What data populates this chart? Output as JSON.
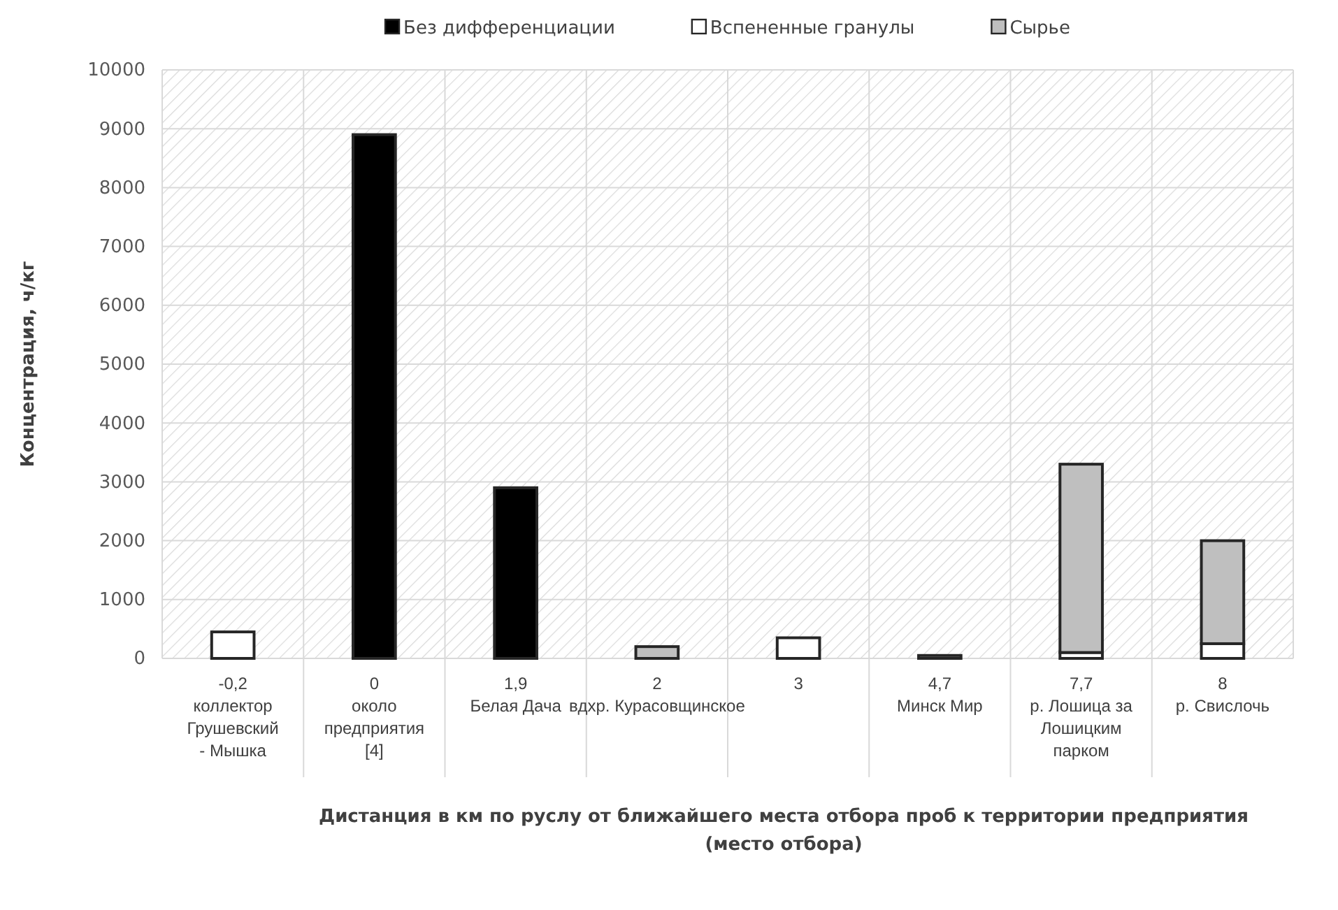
{
  "chart_data": {
    "type": "bar",
    "stacked": true,
    "xlabel": "Дистанция в км по руслу от ближайшего места отбора проб к территории предприятия\n(место отбора)",
    "ylabel": "Концентрация, ч/кг",
    "categories": [
      "-0,2\nколлектор\nГрушевский\n- Мышка",
      "0\nоколо\nпредприятия\n[4]",
      "1,9\nБелая Дача",
      "2\nвдхр. Курасовщинское",
      "3",
      "4,7\nМинск Мир",
      "7,7\nр. Лошица за\nЛошицким\nпарком",
      "8\nр. Свислочь"
    ],
    "series": [
      {
        "name": "Без дифференциации",
        "color": "#000000",
        "values": [
          null,
          8900,
          2900,
          null,
          null,
          null,
          null,
          null
        ]
      },
      {
        "name": "Вспененные гранулы",
        "color": "#ffffff",
        "values": [
          450,
          null,
          null,
          null,
          350,
          null,
          100,
          250
        ]
      },
      {
        "name": "Сырье",
        "color": "#bfbfbf",
        "values": [
          null,
          null,
          null,
          200,
          null,
          50,
          3200,
          1750
        ]
      }
    ],
    "ylim": [
      0,
      10000
    ],
    "yticks": [
      0,
      1000,
      2000,
      3000,
      4000,
      5000,
      6000,
      7000,
      8000,
      9000,
      10000
    ],
    "grid": true,
    "legend": "top"
  }
}
